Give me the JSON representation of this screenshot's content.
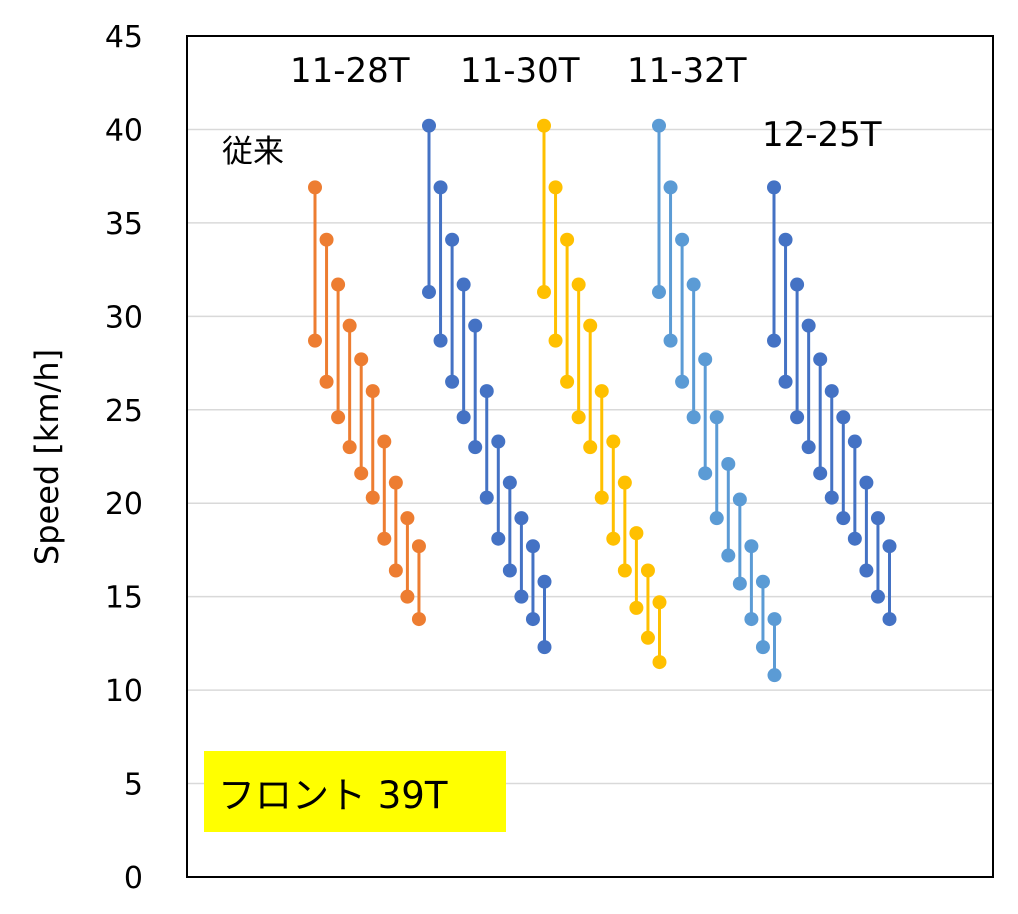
{
  "chart_data": {
    "type": "scatter",
    "ylabel": "Speed [km/h]",
    "ylim": [
      0,
      45
    ],
    "ytick_step": 5,
    "grid": "horizontal",
    "annotations": [
      "従来",
      "11-28T",
      "11-30T",
      "11-32T",
      "12-25T"
    ],
    "boxed_note": "フロント 39T",
    "boxed_note_color": "#ffff00",
    "series": [
      {
        "name": "従来",
        "color": "#ed7d31",
        "steps": [
          [
            36.9,
            28.7
          ],
          [
            34.1,
            26.5
          ],
          [
            31.7,
            24.6
          ],
          [
            29.5,
            23.0
          ],
          [
            27.7,
            21.6
          ],
          [
            26.0,
            20.3
          ],
          [
            23.3,
            18.1
          ],
          [
            21.1,
            16.4
          ],
          [
            19.2,
            15.0
          ],
          [
            17.7,
            13.8
          ]
        ]
      },
      {
        "name": "11-28T",
        "color": "#4472c4",
        "steps": [
          [
            40.2,
            31.3
          ],
          [
            36.9,
            28.7
          ],
          [
            34.1,
            26.5
          ],
          [
            31.7,
            24.6
          ],
          [
            29.5,
            23.0
          ],
          [
            26.0,
            20.3
          ],
          [
            23.3,
            18.1
          ],
          [
            21.1,
            16.4
          ],
          [
            19.2,
            15.0
          ],
          [
            17.7,
            13.8
          ],
          [
            15.8,
            12.3
          ]
        ]
      },
      {
        "name": "11-30T",
        "color": "#ffc000",
        "steps": [
          [
            40.2,
            31.3
          ],
          [
            36.9,
            28.7
          ],
          [
            34.1,
            26.5
          ],
          [
            31.7,
            24.6
          ],
          [
            29.5,
            23.0
          ],
          [
            26.0,
            20.3
          ],
          [
            23.3,
            18.1
          ],
          [
            21.1,
            16.4
          ],
          [
            18.4,
            14.4
          ],
          [
            16.4,
            12.8
          ],
          [
            14.7,
            11.5
          ]
        ]
      },
      {
        "name": "11-32T",
        "color": "#5b9bd5",
        "steps": [
          [
            40.2,
            31.3
          ],
          [
            36.9,
            28.7
          ],
          [
            34.1,
            26.5
          ],
          [
            31.7,
            24.6
          ],
          [
            27.7,
            21.6
          ],
          [
            24.6,
            19.2
          ],
          [
            22.1,
            17.2
          ],
          [
            20.2,
            15.7
          ],
          [
            17.7,
            13.8
          ],
          [
            15.8,
            12.3
          ],
          [
            13.8,
            10.8
          ]
        ]
      },
      {
        "name": "12-25T",
        "color": "#4472c4",
        "steps": [
          [
            36.9,
            28.7
          ],
          [
            34.1,
            26.5
          ],
          [
            31.7,
            24.6
          ],
          [
            29.5,
            23.0
          ],
          [
            27.7,
            21.6
          ],
          [
            26.0,
            20.3
          ],
          [
            24.6,
            19.2
          ],
          [
            23.3,
            18.1
          ],
          [
            21.1,
            16.4
          ],
          [
            19.2,
            15.0
          ],
          [
            17.7,
            13.8
          ]
        ]
      }
    ]
  }
}
